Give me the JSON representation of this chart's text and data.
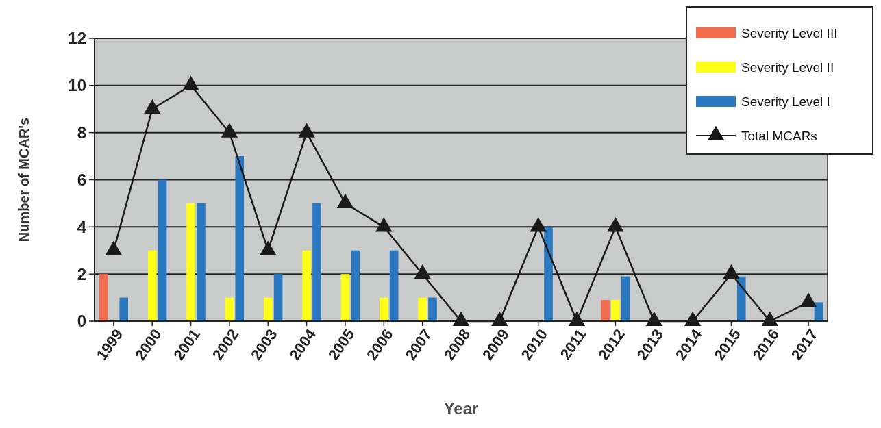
{
  "chart_data": {
    "type": "bar",
    "xlabel": "Year",
    "ylabel": "Number of MCAR's",
    "categories": [
      "1999",
      "2000",
      "2001",
      "2002",
      "2003",
      "2004",
      "2005",
      "2006",
      "2007",
      "2008",
      "2009",
      "2010",
      "2011",
      "2012",
      "2013",
      "2014",
      "2015",
      "2016",
      "2017"
    ],
    "series": [
      {
        "name": "Severity Level III",
        "color": "#f26d4f",
        "values": [
          2,
          null,
          null,
          null,
          null,
          null,
          null,
          null,
          null,
          null,
          null,
          null,
          null,
          0.9,
          null,
          null,
          null,
          null,
          null
        ]
      },
      {
        "name": "Severity Level II",
        "color": "#ffff1a",
        "values": [
          null,
          3,
          5,
          1,
          1,
          3,
          2,
          1,
          1,
          null,
          null,
          null,
          null,
          0.9,
          null,
          null,
          null,
          null,
          null
        ]
      },
      {
        "name": "Severity Level I",
        "color": "#2a78c0",
        "values": [
          1,
          6,
          5,
          7,
          2,
          5,
          3,
          3,
          1,
          null,
          null,
          4,
          null,
          1.9,
          null,
          null,
          1.9,
          null,
          0.8
        ]
      },
      {
        "name": "Total MCARs",
        "type": "line",
        "color": "#1a1a1a",
        "marker": "triangle",
        "values": [
          3,
          9,
          10,
          8,
          3,
          8,
          5,
          4,
          2,
          0,
          0,
          4,
          0,
          4,
          0,
          0,
          2,
          0,
          0.8
        ]
      }
    ],
    "ylim": [
      0,
      12
    ],
    "yticks": [
      0,
      2,
      4,
      6,
      8,
      10,
      12
    ],
    "grid": "y",
    "legend": "top right"
  }
}
